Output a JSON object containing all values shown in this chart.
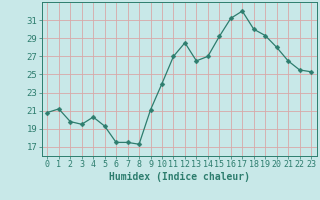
{
  "x": [
    0,
    1,
    2,
    3,
    4,
    5,
    6,
    7,
    8,
    9,
    10,
    11,
    12,
    13,
    14,
    15,
    16,
    17,
    18,
    19,
    20,
    21,
    22,
    23
  ],
  "y": [
    20.8,
    21.2,
    19.8,
    19.5,
    20.3,
    19.3,
    17.5,
    17.5,
    17.3,
    21.1,
    24.0,
    27.0,
    28.5,
    26.5,
    27.0,
    29.2,
    31.2,
    32.0,
    30.0,
    29.3,
    28.0,
    26.5,
    25.5,
    25.3
  ],
  "line_color": "#2d7d6e",
  "marker": "D",
  "marker_size": 2.5,
  "bg_color": "#c8e8e8",
  "grid_color": "#d8a8a8",
  "ylabel_ticks": [
    17,
    19,
    21,
    23,
    25,
    27,
    29,
    31
  ],
  "xlabel": "Humidex (Indice chaleur)",
  "xlabel_fontsize": 7,
  "tick_fontsize": 6.5,
  "ylim": [
    16.0,
    33.0
  ],
  "xlim": [
    -0.5,
    23.5
  ]
}
